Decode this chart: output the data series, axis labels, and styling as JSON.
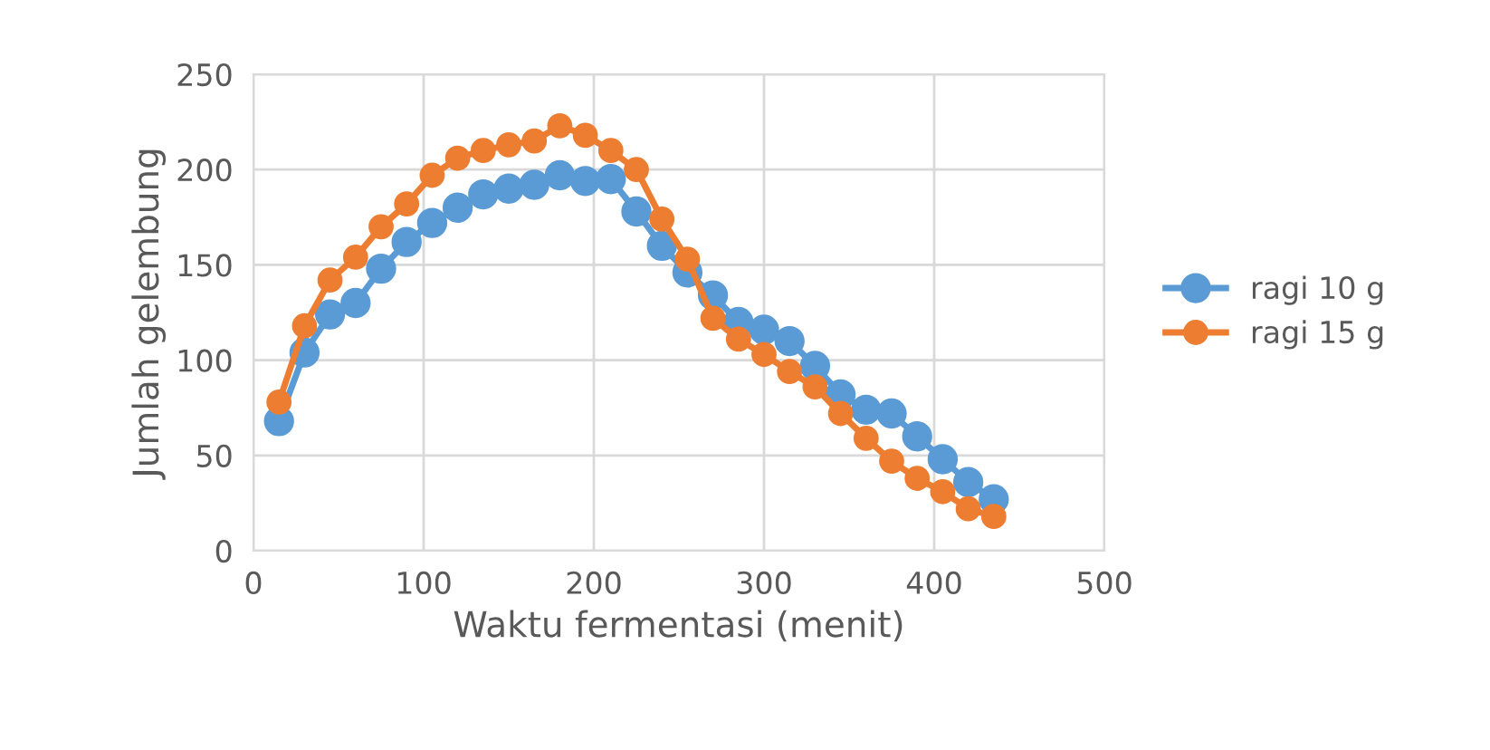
{
  "chart_data": {
    "type": "line",
    "xlabel": "Waktu fermentasi (menit)",
    "ylabel": "Jumlah gelembung",
    "x": [
      15,
      30,
      45,
      60,
      75,
      90,
      105,
      120,
      135,
      150,
      165,
      180,
      195,
      210,
      225,
      240,
      255,
      270,
      285,
      300,
      315,
      330,
      345,
      360,
      375,
      390,
      405,
      420,
      435
    ],
    "series": [
      {
        "name": "ragi 10 g",
        "color": "#5b9bd5",
        "values": [
          68,
          104,
          124,
          130,
          148,
          162,
          172,
          180,
          187,
          190,
          192,
          197,
          194,
          195,
          178,
          160,
          146,
          134,
          120,
          116,
          110,
          97,
          82,
          74,
          72,
          60,
          48,
          36,
          27
        ]
      },
      {
        "name": "ragi 15 g",
        "color": "#ed7d31",
        "values": [
          78,
          118,
          142,
          154,
          170,
          182,
          197,
          206,
          210,
          213,
          215,
          223,
          218,
          210,
          200,
          174,
          153,
          122,
          111,
          103,
          94,
          86,
          72,
          59,
          47,
          38,
          31,
          22,
          18
        ]
      }
    ],
    "xlim": [
      0,
      500
    ],
    "xticks": [
      0,
      100,
      200,
      300,
      400,
      500
    ],
    "ylim": [
      0,
      250
    ],
    "yticks": [
      0,
      50,
      100,
      150,
      200,
      250
    ],
    "grid": true,
    "legend": "right",
    "marker": "circle",
    "line_style": "solid"
  }
}
